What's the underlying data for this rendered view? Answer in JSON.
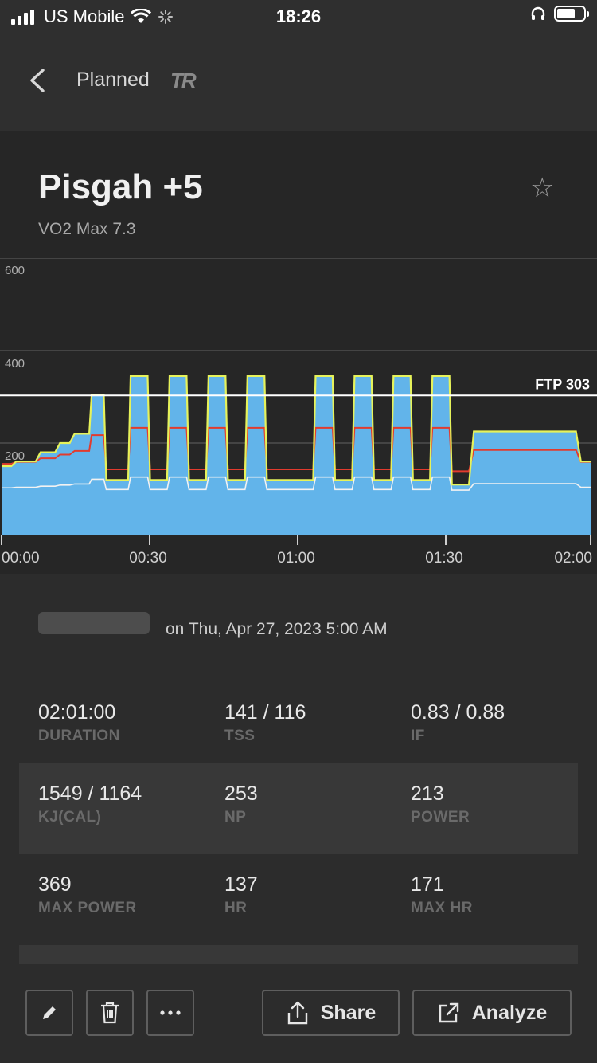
{
  "status_bar": {
    "carrier": "US Mobile",
    "time": "18:26"
  },
  "nav": {
    "title": "Planned",
    "logo_text": "TR"
  },
  "workout": {
    "name": "Pisgah +5",
    "subtitle": "VO2 Max 7.3"
  },
  "chart_data": {
    "type": "line",
    "y_ticks": [
      "600",
      "400",
      "200"
    ],
    "x_ticks": [
      "00:00",
      "00:30",
      "01:00",
      "01:30",
      "02:00"
    ],
    "ylim": [
      0,
      600
    ],
    "xlim_minutes": [
      0,
      121
    ],
    "ftp_label": "FTP 303",
    "ftp": 303,
    "target_power": [
      [
        0,
        150
      ],
      [
        2,
        150
      ],
      [
        3,
        160
      ],
      [
        7,
        160
      ],
      [
        8,
        180
      ],
      [
        11,
        180
      ],
      [
        12,
        200
      ],
      [
        14,
        200
      ],
      [
        15,
        220
      ],
      [
        18,
        220
      ],
      [
        18.5,
        305
      ],
      [
        21,
        305
      ],
      [
        21.5,
        120
      ],
      [
        26,
        120
      ],
      [
        26.5,
        345
      ],
      [
        30,
        345
      ],
      [
        30.5,
        120
      ],
      [
        34,
        120
      ],
      [
        34.5,
        345
      ],
      [
        38,
        345
      ],
      [
        38.5,
        120
      ],
      [
        42,
        120
      ],
      [
        42.5,
        345
      ],
      [
        46,
        345
      ],
      [
        46.5,
        120
      ],
      [
        50,
        120
      ],
      [
        50.5,
        345
      ],
      [
        54,
        345
      ],
      [
        54.5,
        120
      ],
      [
        64,
        120
      ],
      [
        64.5,
        345
      ],
      [
        68,
        345
      ],
      [
        68.5,
        120
      ],
      [
        72,
        120
      ],
      [
        72.5,
        345
      ],
      [
        76,
        345
      ],
      [
        76.5,
        120
      ],
      [
        80,
        120
      ],
      [
        80.5,
        345
      ],
      [
        84,
        345
      ],
      [
        84.5,
        120
      ],
      [
        88,
        120
      ],
      [
        88.5,
        345
      ],
      [
        92,
        345
      ],
      [
        92.5,
        110
      ],
      [
        96,
        110
      ],
      [
        97,
        225
      ],
      [
        118,
        225
      ],
      [
        119,
        160
      ],
      [
        121,
        160
      ]
    ],
    "colors": {
      "target_fill": "#62b4ea",
      "power": "#e6f25a",
      "heart_rate": "#e23b2e",
      "cadence": "#f2f2f2",
      "grid": "#444444"
    }
  },
  "details": {
    "date_text": "on Thu, Apr 27, 2023 5:00 AM",
    "rows": [
      [
        {
          "value": "02:01:00",
          "label": "DURATION"
        },
        {
          "value": "141 / 116",
          "label": "TSS"
        },
        {
          "value": "0.83 / 0.88",
          "label": "IF"
        }
      ],
      [
        {
          "value": "1549 / 1164",
          "label": "KJ(CAL)"
        },
        {
          "value": "253",
          "label": "NP"
        },
        {
          "value": "213",
          "label": "POWER"
        }
      ],
      [
        {
          "value": "369",
          "label": "MAX POWER"
        },
        {
          "value": "137",
          "label": "HR"
        },
        {
          "value": "171",
          "label": "MAX HR"
        }
      ]
    ]
  },
  "toolbar": {
    "share_label": "Share",
    "analyze_label": "Analyze"
  }
}
